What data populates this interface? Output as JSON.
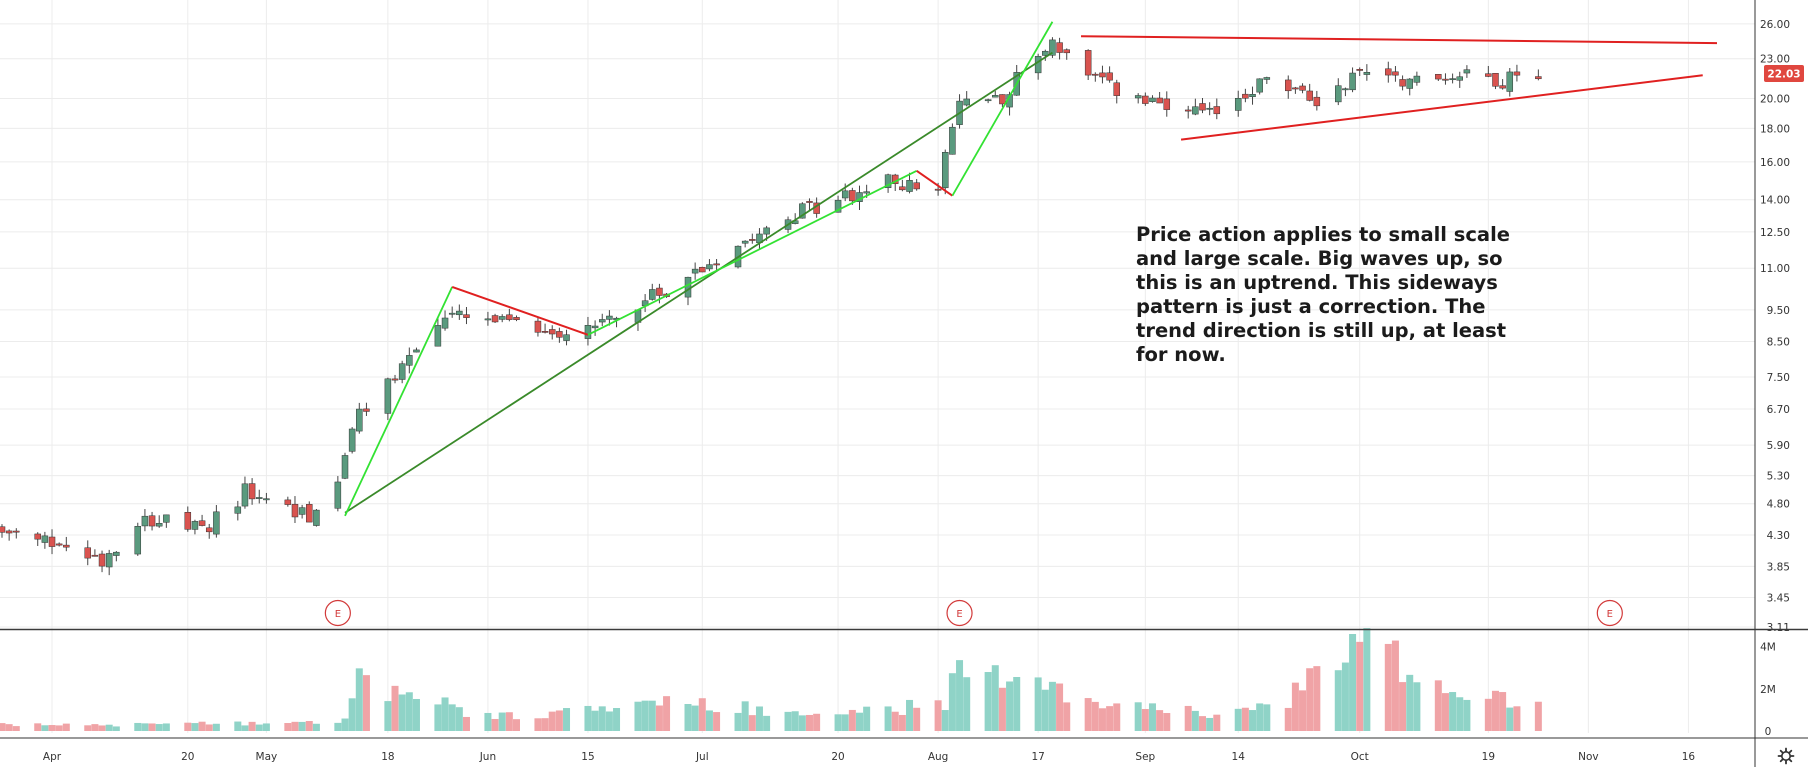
{
  "chart_data": {
    "type": "candlestick",
    "title": "",
    "current_price": "22.03",
    "colors": {
      "up_body": "#5a9a7e",
      "down_body": "#d9534f",
      "wick": "#444444",
      "up_volume": "#8fd3c7",
      "down_volume": "#f0a3a6",
      "bright_trend": "#33e233",
      "dark_trend": "#3a8a2a",
      "red_line": "#e02020",
      "grid": "#ececec"
    },
    "price_axis": {
      "scale": "log",
      "range": [
        3.11,
        27.5
      ],
      "ticks": [
        "3.11",
        "3.45",
        "3.85",
        "4.30",
        "4.80",
        "5.30",
        "5.90",
        "6.70",
        "7.50",
        "8.50",
        "9.50",
        "11.00",
        "12.50",
        "14.00",
        "16.00",
        "18.00",
        "20.00",
        "23.00",
        "26.00"
      ]
    },
    "volume_axis": {
      "range": [
        0,
        4500000
      ],
      "ticks": [
        "0",
        "2M",
        "4M"
      ]
    },
    "x_axis": {
      "first_date": "2020-03-25",
      "last_date": "2020-11-20",
      "ticks": [
        {
          "label": "Apr",
          "date": "2020-04-01"
        },
        {
          "label": "20",
          "date": "2020-04-20"
        },
        {
          "label": "May",
          "date": "2020-05-01"
        },
        {
          "label": "18",
          "date": "2020-05-18"
        },
        {
          "label": "Jun",
          "date": "2020-06-01"
        },
        {
          "label": "15",
          "date": "2020-06-15"
        },
        {
          "label": "Jul",
          "date": "2020-07-01"
        },
        {
          "label": "20",
          "date": "2020-07-20"
        },
        {
          "label": "Aug",
          "date": "2020-08-03"
        },
        {
          "label": "17",
          "date": "2020-08-17"
        },
        {
          "label": "Sep",
          "date": "2020-09-01"
        },
        {
          "label": "14",
          "date": "2020-09-14"
        },
        {
          "label": "Oct",
          "date": "2020-10-01"
        },
        {
          "label": "19",
          "date": "2020-10-19"
        },
        {
          "label": "Nov",
          "date": "2020-11-02"
        },
        {
          "label": "16",
          "date": "2020-11-16"
        }
      ]
    },
    "earnings_markers": [
      {
        "label": "E",
        "date": "2020-05-11"
      },
      {
        "label": "E",
        "date": "2020-08-06"
      },
      {
        "label": "E",
        "date": "2020-11-05"
      }
    ],
    "close_series": [
      {
        "date": "2020-03-25",
        "close": 4.3
      },
      {
        "date": "2020-04-03",
        "close": 4.15
      },
      {
        "date": "2020-04-08",
        "close": 3.95
      },
      {
        "date": "2020-04-14",
        "close": 4.6
      },
      {
        "date": "2020-04-22",
        "close": 4.35
      },
      {
        "date": "2020-04-28",
        "close": 5.0
      },
      {
        "date": "2020-05-07",
        "close": 4.6
      },
      {
        "date": "2020-05-11",
        "close": 5.1
      },
      {
        "date": "2020-05-13",
        "close": 6.3
      },
      {
        "date": "2020-05-20",
        "close": 7.8
      },
      {
        "date": "2020-05-26",
        "close": 9.3
      },
      {
        "date": "2020-06-05",
        "close": 9.0
      },
      {
        "date": "2020-06-12",
        "close": 8.8
      },
      {
        "date": "2020-06-22",
        "close": 9.6
      },
      {
        "date": "2020-07-02",
        "close": 11.2
      },
      {
        "date": "2020-07-10",
        "close": 12.9
      },
      {
        "date": "2020-07-20",
        "close": 14.0
      },
      {
        "date": "2020-07-28",
        "close": 15.0
      },
      {
        "date": "2020-08-03",
        "close": 14.3
      },
      {
        "date": "2020-08-06",
        "close": 19.8
      },
      {
        "date": "2020-08-12",
        "close": 20.2
      },
      {
        "date": "2020-08-19",
        "close": 24.5
      },
      {
        "date": "2020-08-24",
        "close": 21.5
      },
      {
        "date": "2020-09-03",
        "close": 19.3
      },
      {
        "date": "2020-09-10",
        "close": 18.8
      },
      {
        "date": "2020-09-18",
        "close": 21.4
      },
      {
        "date": "2020-09-25",
        "close": 19.8
      },
      {
        "date": "2020-10-02",
        "close": 22.3
      },
      {
        "date": "2020-10-09",
        "close": 21.2
      },
      {
        "date": "2020-10-16",
        "close": 22.0
      },
      {
        "date": "2020-10-21",
        "close": 21.3
      },
      {
        "date": "2020-10-26",
        "close": 22.03
      }
    ],
    "volume_series": [
      {
        "date": "2020-03-25",
        "volume": 300000
      },
      {
        "date": "2020-04-20",
        "volume": 350000
      },
      {
        "date": "2020-05-12",
        "volume": 500000
      },
      {
        "date": "2020-05-14",
        "volume": 2600000
      },
      {
        "date": "2020-05-19",
        "volume": 2000000
      },
      {
        "date": "2020-06-01",
        "volume": 700000
      },
      {
        "date": "2020-06-29",
        "volume": 1400000
      },
      {
        "date": "2020-07-20",
        "volume": 800000
      },
      {
        "date": "2020-08-04",
        "volume": 1400000
      },
      {
        "date": "2020-08-07",
        "volume": 3900000
      },
      {
        "date": "2020-08-12",
        "volume": 2400000
      },
      {
        "date": "2020-08-21",
        "volume": 1900000
      },
      {
        "date": "2020-09-10",
        "volume": 800000
      },
      {
        "date": "2020-09-21",
        "volume": 1600000
      },
      {
        "date": "2020-10-01",
        "volume": 4500000
      },
      {
        "date": "2020-10-14",
        "volume": 2200000
      },
      {
        "date": "2020-10-26",
        "volume": 1400000
      }
    ],
    "trend_lines": [
      {
        "style": "dark_trend",
        "from": {
          "date": "2020-05-12",
          "price": 4.65
        },
        "to": {
          "date": "2020-08-19",
          "price": 23.5
        }
      },
      {
        "style": "bright_trend",
        "from": {
          "date": "2020-05-12",
          "price": 4.6
        },
        "to": {
          "date": "2020-05-27",
          "price": 10.3
        }
      },
      {
        "style": "red_line",
        "from": {
          "date": "2020-05-27",
          "price": 10.3
        },
        "to": {
          "date": "2020-06-15",
          "price": 8.7
        }
      },
      {
        "style": "bright_trend",
        "from": {
          "date": "2020-06-15",
          "price": 8.7
        },
        "to": {
          "date": "2020-07-31",
          "price": 15.5
        }
      },
      {
        "style": "red_line",
        "from": {
          "date": "2020-07-31",
          "price": 15.5
        },
        "to": {
          "date": "2020-08-05",
          "price": 14.2
        }
      },
      {
        "style": "bright_trend",
        "from": {
          "date": "2020-08-05",
          "price": 14.2
        },
        "to": {
          "date": "2020-08-19",
          "price": 26.2
        }
      },
      {
        "style": "red_line",
        "from": {
          "date": "2020-08-23",
          "price": 24.9
        },
        "to": {
          "date": "2020-11-20",
          "price": 24.3
        }
      },
      {
        "style": "red_line",
        "from": {
          "date": "2020-09-06",
          "price": 17.3
        },
        "to": {
          "date": "2020-11-18",
          "price": 21.7
        }
      }
    ],
    "annotation": [
      "Price action applies to small scale",
      "and large scale. Big waves up, so",
      "this is an uptrend. This sideways",
      "pattern is just a correction. The",
      "trend direction is still up, at least",
      "for now."
    ]
  }
}
